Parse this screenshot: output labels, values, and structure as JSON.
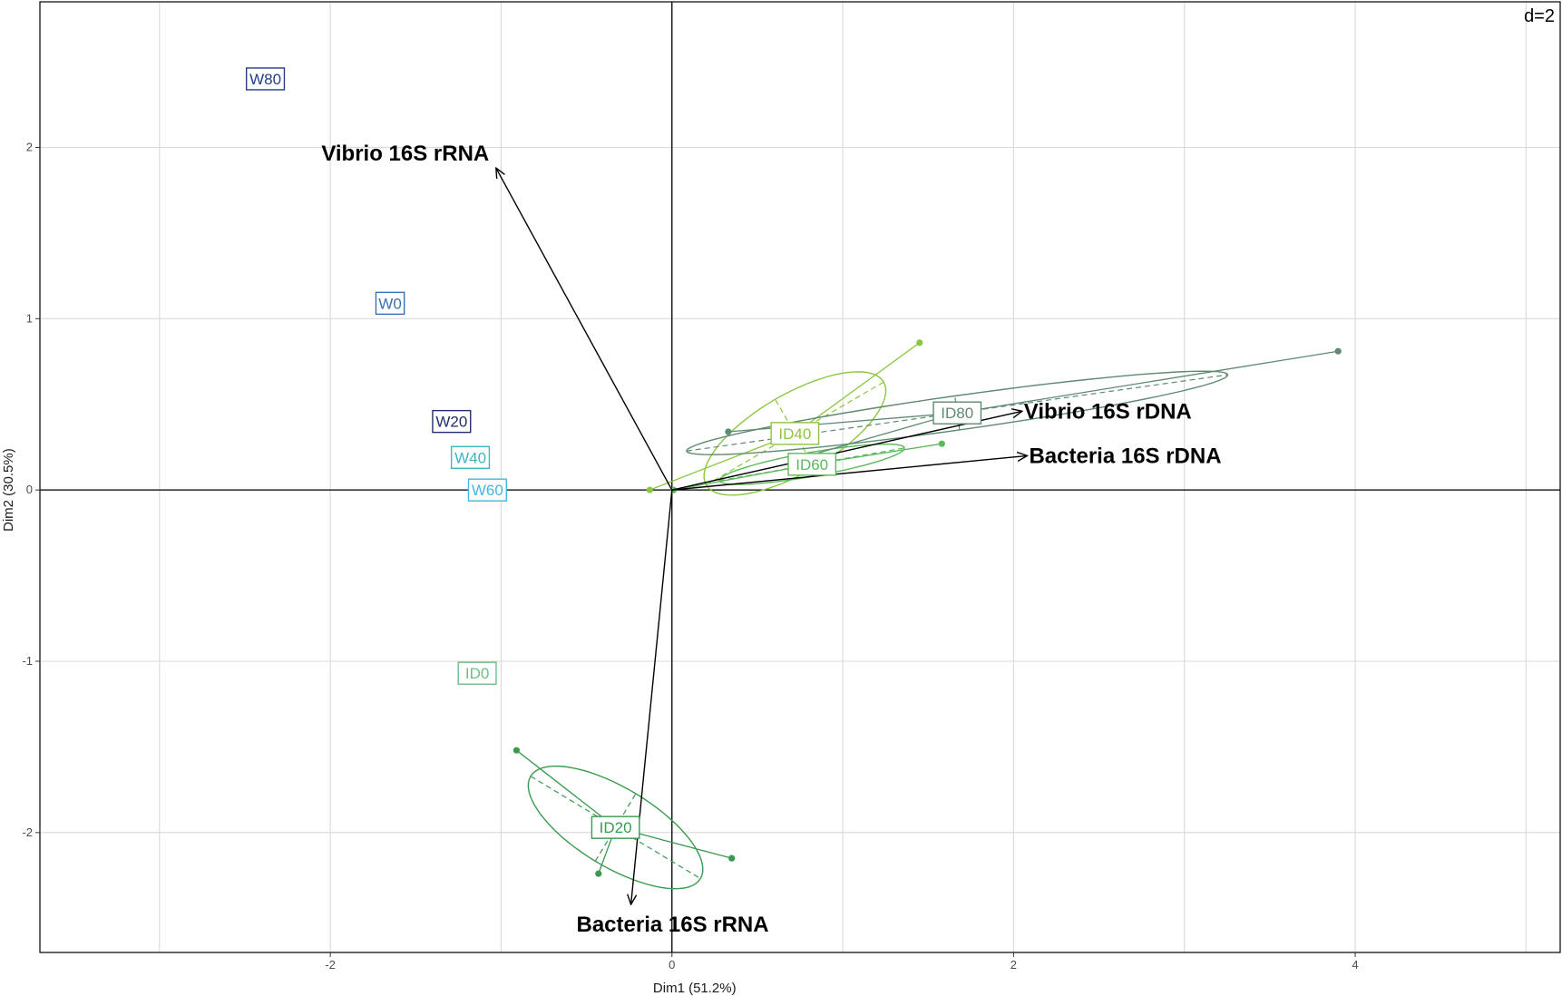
{
  "chart_data": {
    "type": "scatter",
    "title": "",
    "scale_label": "d=2",
    "xlabel": "Dim1 (51.2%)",
    "ylabel": "Dim2 (30.5%)",
    "xlim": [
      -3.7,
      5.2
    ],
    "ylim": [
      -2.7,
      2.85
    ],
    "x_ticks": [
      -2,
      0,
      2,
      4
    ],
    "y_ticks": [
      -2,
      -1,
      0,
      1,
      2
    ],
    "grid": true,
    "axis_color": "#000000",
    "grid_color": "#d9d9d9",
    "label_points": [
      {
        "label": "W80",
        "x": -2.38,
        "y": 2.4,
        "color": "#1f3f88"
      },
      {
        "label": "W0",
        "x": -1.65,
        "y": 1.09,
        "color": "#3a6fb5"
      },
      {
        "label": "W20",
        "x": -1.29,
        "y": 0.4,
        "color": "#22306e"
      },
      {
        "label": "W40",
        "x": -1.18,
        "y": 0.19,
        "color": "#3fb3c7"
      },
      {
        "label": "W60",
        "x": -1.08,
        "y": 0.0,
        "color": "#42b6df"
      },
      {
        "label": "ID0",
        "x": -1.14,
        "y": -1.07,
        "color": "#6bbf85"
      }
    ],
    "arrows": [
      {
        "label": "Vibrio 16S rRNA",
        "x": -1.03,
        "y": 1.88
      },
      {
        "label": "Vibrio 16S rDNA",
        "x": 2.05,
        "y": 0.46
      },
      {
        "label": "Bacteria 16S rDNA",
        "x": 2.08,
        "y": 0.2
      },
      {
        "label": "Bacteria 16S rRNA",
        "x": -0.24,
        "y": -2.42
      }
    ],
    "groups": [
      {
        "label": "ID20",
        "color": "#3a9a4f",
        "centroid": [
          -0.33,
          -1.97
        ],
        "points": [
          [
            -0.91,
            -1.52
          ],
          [
            -0.43,
            -2.24
          ],
          [
            0.35,
            -2.15
          ]
        ],
        "ellipse": {
          "angle_deg": -31,
          "a": 0.58,
          "b": 0.23
        }
      },
      {
        "label": "ID40",
        "color": "#8cc63f",
        "centroid": [
          0.72,
          0.33
        ],
        "points": [
          [
            -0.13,
            0.0
          ],
          [
            1.45,
            0.86
          ],
          [
            0.67,
            0.32
          ]
        ],
        "ellipse": {
          "angle_deg": 30,
          "a": 0.6,
          "b": 0.23
        }
      },
      {
        "label": "ID60",
        "color": "#5cb85c",
        "centroid": [
          0.82,
          0.15
        ],
        "points": [
          [
            0.01,
            0.0
          ],
          [
            1.58,
            0.27
          ],
          [
            0.9,
            0.18
          ]
        ],
        "ellipse": {
          "angle_deg": 10,
          "a": 0.55,
          "b": 0.07
        }
      },
      {
        "label": "ID80",
        "color": "#5e8a72",
        "centroid": [
          1.67,
          0.45
        ],
        "points": [
          [
            0.33,
            0.34
          ],
          [
            3.9,
            0.81
          ],
          [
            0.8,
            0.2
          ]
        ],
        "ellipse": {
          "angle_deg": 8,
          "a": 1.6,
          "b": 0.1
        }
      }
    ]
  }
}
